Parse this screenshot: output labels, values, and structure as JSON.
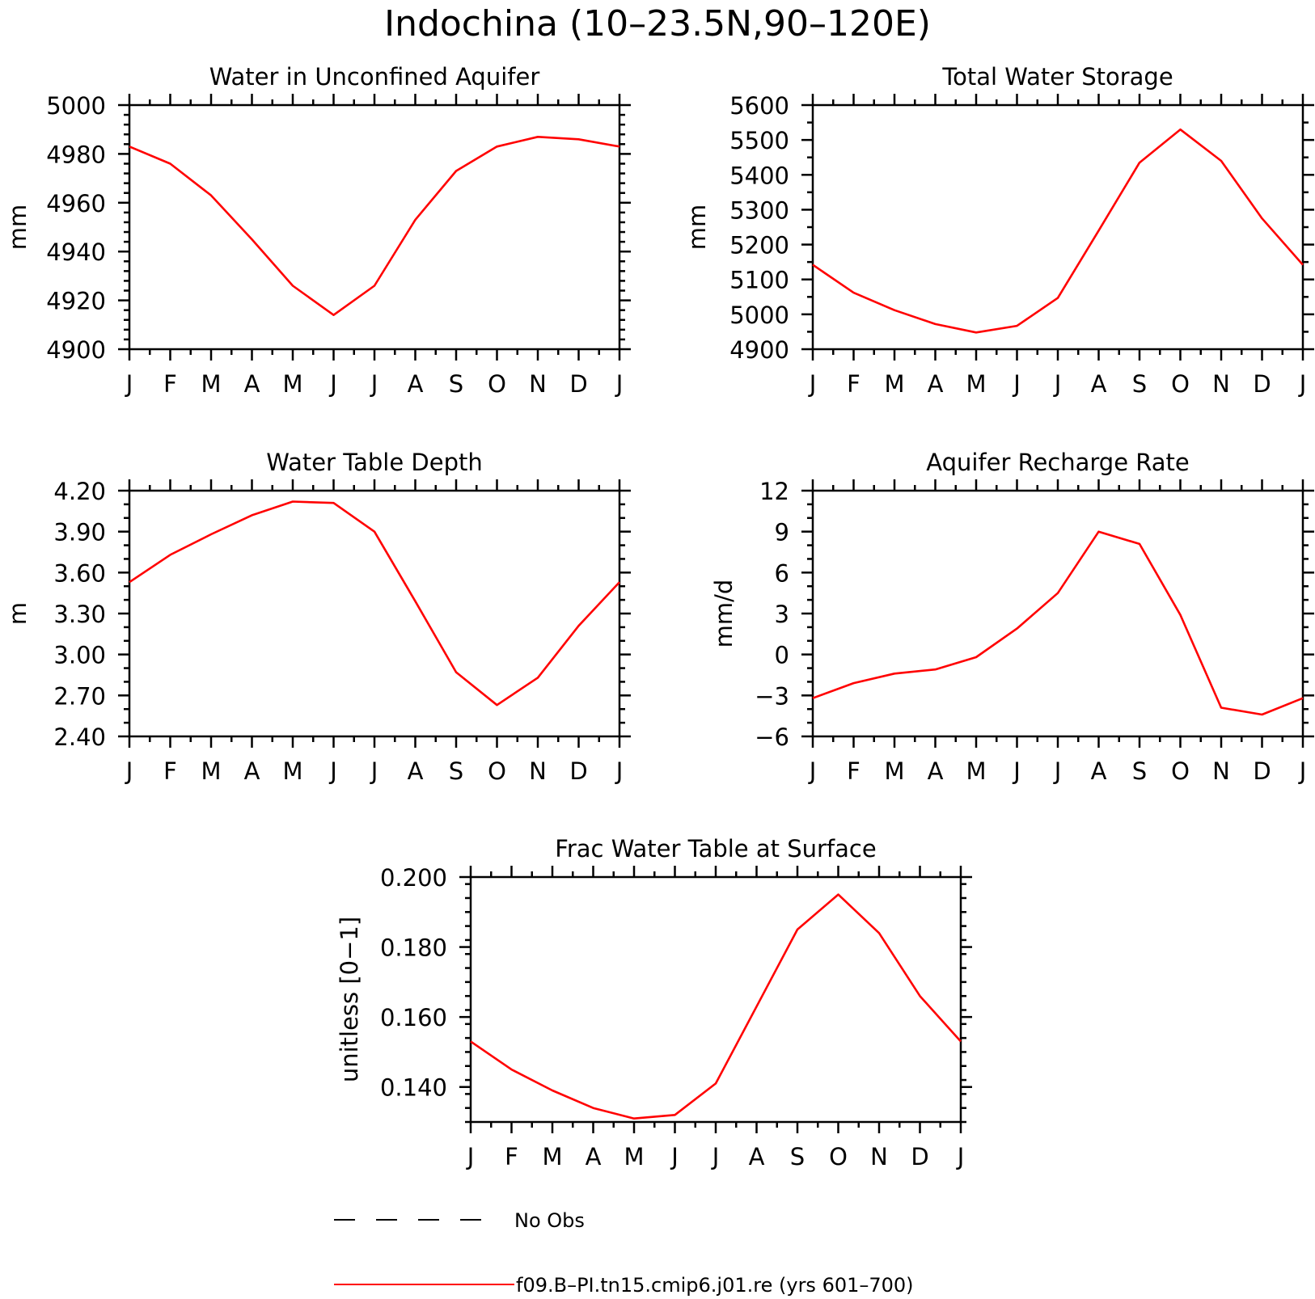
{
  "figure_title": "Indochina (10–23.5N,90–120E)",
  "colors": {
    "model": "#ff0000",
    "obs": "#000000",
    "axes": "#000000"
  },
  "chart_data": [
    {
      "type": "line",
      "title": "Water in Unconfined Aquifer",
      "ylabel": "mm",
      "xlabel": "",
      "x": [
        "J",
        "F",
        "M",
        "A",
        "M",
        "J",
        "J",
        "A",
        "S",
        "O",
        "N",
        "D",
        "J"
      ],
      "ylim": [
        4900,
        5000
      ],
      "yticks": [
        4900,
        4920,
        4940,
        4960,
        4980,
        5000
      ],
      "ytick_labels": [
        "4900",
        "4920",
        "4940",
        "4960",
        "4980",
        "5000"
      ],
      "yminor_per_major": 4,
      "series": [
        {
          "values": [
            4983,
            4976,
            4963,
            4945,
            4926,
            4914,
            4926,
            4953,
            4973,
            4983,
            4987,
            4986,
            4983
          ]
        }
      ]
    },
    {
      "type": "line",
      "title": "Total Water Storage",
      "ylabel": "mm",
      "xlabel": "",
      "x": [
        "J",
        "F",
        "M",
        "A",
        "M",
        "J",
        "J",
        "A",
        "S",
        "O",
        "N",
        "D",
        "J"
      ],
      "ylim": [
        4900,
        5600
      ],
      "yticks": [
        4900,
        5000,
        5100,
        5200,
        5300,
        5400,
        5500,
        5600
      ],
      "ytick_labels": [
        "4900",
        "5000",
        "5100",
        "5200",
        "5300",
        "5400",
        "5500",
        "5600"
      ],
      "yminor_per_major": 1,
      "series": [
        {
          "values": [
            5142,
            5062,
            5012,
            4972,
            4948,
            4967,
            5047,
            5240,
            5435,
            5530,
            5440,
            5275,
            5142
          ]
        }
      ]
    },
    {
      "type": "line",
      "title": "Water Table Depth",
      "ylabel": "m",
      "xlabel": "",
      "x": [
        "J",
        "F",
        "M",
        "A",
        "M",
        "J",
        "J",
        "A",
        "S",
        "O",
        "N",
        "D",
        "J"
      ],
      "ylim": [
        2.4,
        4.2
      ],
      "yticks": [
        2.4,
        2.7,
        3.0,
        3.3,
        3.6,
        3.9,
        4.2
      ],
      "ytick_labels": [
        "2.40",
        "2.70",
        "3.00",
        "3.30",
        "3.60",
        "3.90",
        "4.20"
      ],
      "yminor_per_major": 2,
      "series": [
        {
          "values": [
            3.53,
            3.73,
            3.88,
            4.02,
            4.12,
            4.11,
            3.9,
            3.39,
            2.87,
            2.63,
            2.83,
            3.21,
            3.53
          ]
        }
      ]
    },
    {
      "type": "line",
      "title": "Aquifer Recharge Rate",
      "ylabel": "mm/d",
      "xlabel": "",
      "x": [
        "J",
        "F",
        "M",
        "A",
        "M",
        "J",
        "J",
        "A",
        "S",
        "O",
        "N",
        "D",
        "J"
      ],
      "ylim": [
        -6,
        12
      ],
      "yticks": [
        -6,
        -3,
        0,
        3,
        6,
        9,
        12
      ],
      "ytick_labels": [
        "−6",
        "−3",
        "0",
        "3",
        "6",
        "9",
        "12"
      ],
      "yminor_per_major": 2,
      "series": [
        {
          "values": [
            -3.2,
            -2.1,
            -1.4,
            -1.1,
            -0.2,
            1.9,
            4.5,
            9.0,
            8.1,
            2.9,
            -3.9,
            -4.4,
            -3.2
          ]
        }
      ]
    },
    {
      "type": "line",
      "title": "Frac Water Table at Surface",
      "ylabel": "unitless [0−1]",
      "xlabel": "",
      "x": [
        "J",
        "F",
        "M",
        "A",
        "M",
        "J",
        "J",
        "A",
        "S",
        "O",
        "N",
        "D",
        "J"
      ],
      "ylim": [
        0.13,
        0.2
      ],
      "yticks": [
        0.14,
        0.16,
        0.18,
        0.2
      ],
      "ytick_labels": [
        "0.140",
        "0.160",
        "0.180",
        "0.200"
      ],
      "yminor_per_major": 4,
      "series": [
        {
          "values": [
            0.153,
            0.145,
            0.139,
            0.134,
            0.131,
            0.132,
            0.141,
            0.163,
            0.185,
            0.195,
            0.184,
            0.166,
            0.153
          ]
        }
      ]
    }
  ],
  "legend": {
    "obs_label": "No Obs",
    "model_label": "f09.B–PI.tn15.cmip6.j01.re (yrs 601–700)"
  }
}
